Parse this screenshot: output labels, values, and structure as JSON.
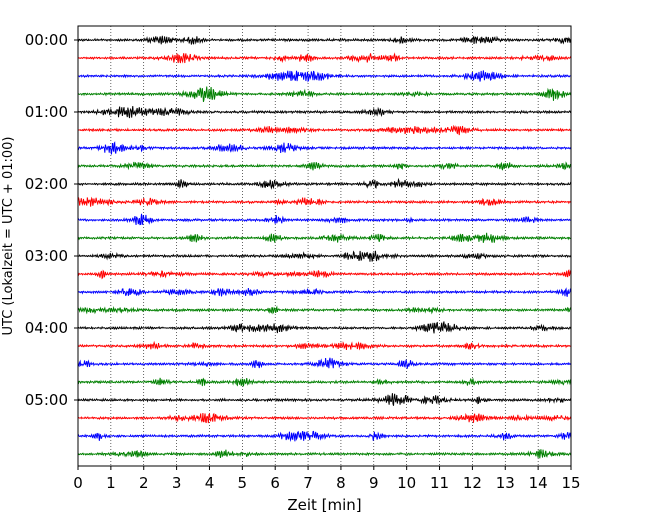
{
  "chart_data": {
    "type": "line",
    "title": "",
    "xlabel": "Zeit  [min]",
    "ylabel": "UTC (Lokalzeit = UTC + 01:00)",
    "xlim": [
      0,
      15
    ],
    "x_ticks": [
      0,
      1,
      2,
      3,
      4,
      5,
      6,
      7,
      8,
      9,
      10,
      11,
      12,
      13,
      14,
      15
    ],
    "y_ticks": [
      "00:00",
      "01:00",
      "02:00",
      "03:00",
      "04:00",
      "05:00"
    ],
    "trace_interval_minutes": 15,
    "trace_count": 24,
    "trace_colors": [
      "#000000",
      "#ff0000",
      "#0000ff",
      "#008000"
    ],
    "grid": "vertical dotted",
    "traces": [
      {
        "start": "00:00"
      },
      {
        "start": "00:15"
      },
      {
        "start": "00:30"
      },
      {
        "start": "00:45"
      },
      {
        "start": "01:00"
      },
      {
        "start": "01:15"
      },
      {
        "start": "01:30"
      },
      {
        "start": "01:45"
      },
      {
        "start": "02:00"
      },
      {
        "start": "02:15"
      },
      {
        "start": "02:30"
      },
      {
        "start": "02:45"
      },
      {
        "start": "03:00"
      },
      {
        "start": "03:15"
      },
      {
        "start": "03:30"
      },
      {
        "start": "03:45"
      },
      {
        "start": "04:00"
      },
      {
        "start": "04:15"
      },
      {
        "start": "04:30"
      },
      {
        "start": "04:45"
      },
      {
        "start": "05:00"
      },
      {
        "start": "05:15"
      },
      {
        "start": "05:30"
      },
      {
        "start": "05:45"
      }
    ]
  }
}
